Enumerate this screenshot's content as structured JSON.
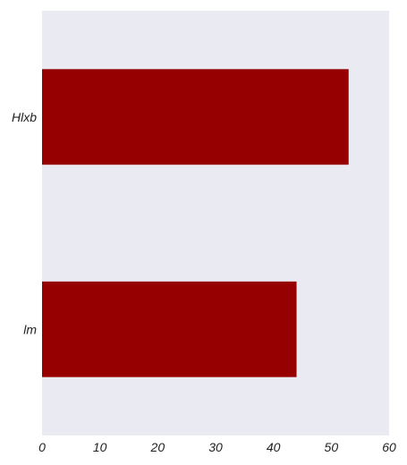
{
  "chart_data": {
    "type": "bar",
    "orientation": "horizontal",
    "categories": [
      "Hlxb",
      "lm"
    ],
    "values": [
      53,
      44
    ],
    "title": "",
    "xlabel": "",
    "ylabel": "",
    "xlim": [
      0,
      60
    ],
    "xticks": [
      "0",
      "10",
      "20",
      "30",
      "40",
      "50",
      "60"
    ],
    "grid": false,
    "legend": "none",
    "colors": {
      "bar": "#960000",
      "plot_background": "#eaeaf2"
    }
  }
}
